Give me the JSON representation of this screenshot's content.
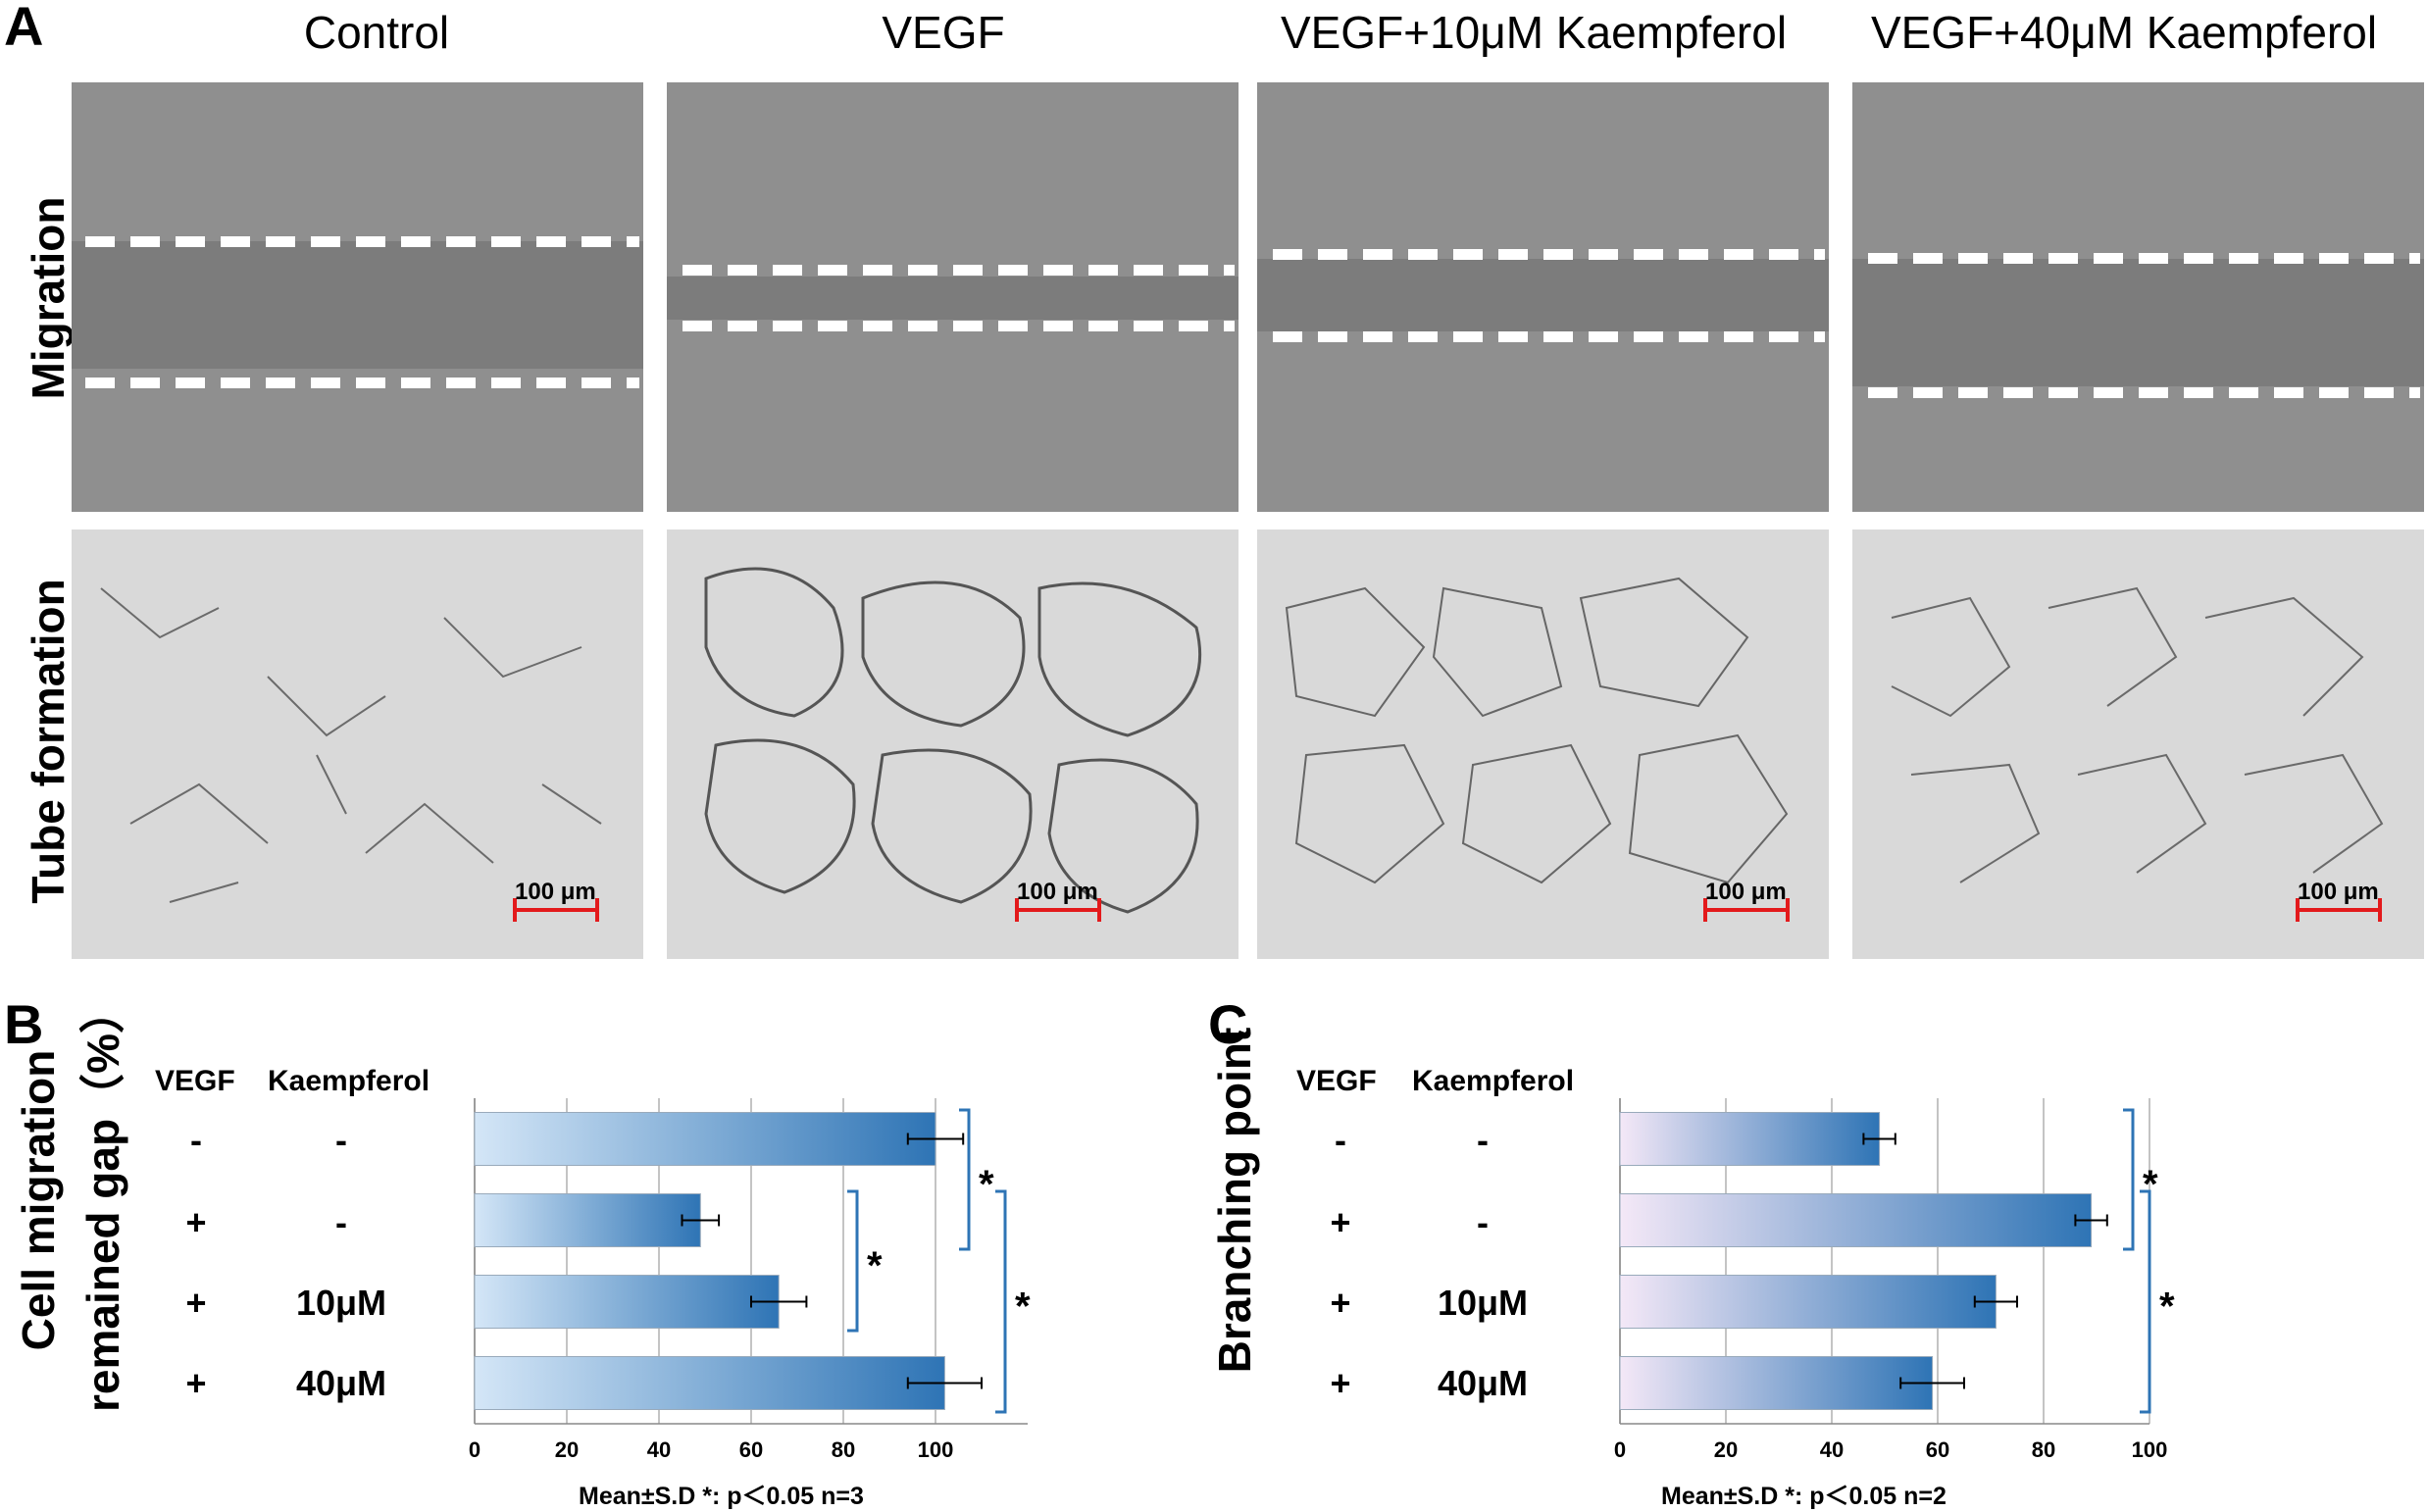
{
  "panel_letters": {
    "a": "A",
    "b": "B",
    "c": "C"
  },
  "columns": [
    "Control",
    "VEGF",
    "VEGF+10μM Kaempferol",
    "VEGF+40μM Kaempferol"
  ],
  "rows": [
    "Migration",
    "Tube formation"
  ],
  "scale_bar_label": "100 μm",
  "treatments": {
    "headers": [
      "VEGF",
      "Kaempferol"
    ],
    "rows": [
      [
        "-",
        "-"
      ],
      [
        "+",
        "-"
      ],
      [
        "+",
        "10μM"
      ],
      [
        "+",
        "40μM"
      ]
    ]
  },
  "chart_data": [
    {
      "type": "bar",
      "orientation": "horizontal",
      "ylabel_line1": "Cell migration",
      "ylabel_line2": "remained gap（%）",
      "categories": [
        "Control",
        "VEGF",
        "VEGF+10μM Kaempferol",
        "VEGF+40μM Kaempferol"
      ],
      "values": [
        100,
        49,
        66,
        102
      ],
      "errors": [
        6,
        4,
        6,
        8
      ],
      "xlim": [
        0,
        120
      ],
      "ticks": [
        0,
        20,
        40,
        60,
        80,
        100
      ],
      "grid": true,
      "bar_color": "#2e74b5",
      "significance": [
        "*",
        "*",
        "*"
      ],
      "footnote": "Mean±S.D  *: p＜0.05  n=3"
    },
    {
      "type": "bar",
      "orientation": "horizontal",
      "ylabel": "Branching point",
      "categories": [
        "Control",
        "VEGF",
        "VEGF+10μM Kaempferol",
        "VEGF+40μM Kaempferol"
      ],
      "values": [
        49,
        89,
        71,
        59
      ],
      "errors": [
        3,
        3,
        4,
        6
      ],
      "xlim": [
        0,
        100
      ],
      "ticks": [
        0,
        20,
        40,
        60,
        80,
        100
      ],
      "grid": true,
      "bar_color": "#2e74b5",
      "significance": [
        "*",
        "*"
      ],
      "footnote": "Mean±S.D  *: p＜0.05  n=2"
    }
  ]
}
